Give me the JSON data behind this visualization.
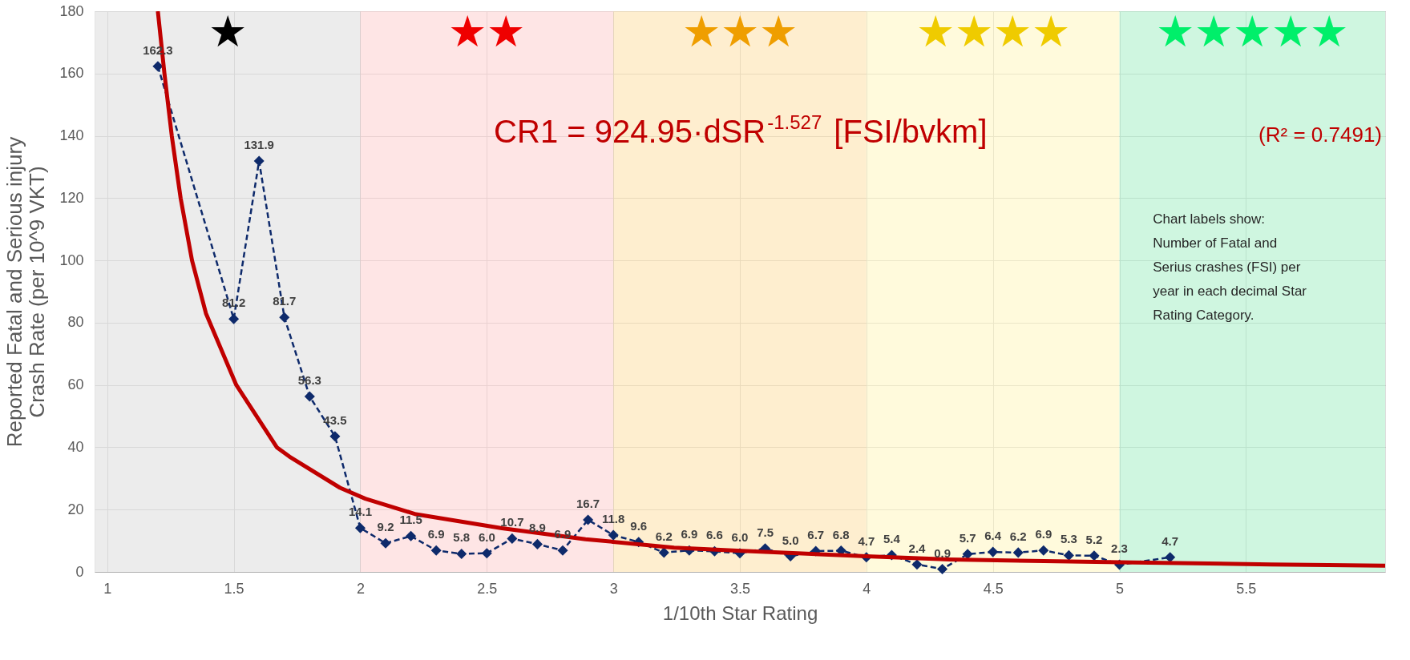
{
  "chart_data": {
    "type": "line",
    "xlabel": "1/10th Star Rating",
    "ylabel": "Reported Fatal and Serious injury Crash Rate (per 10^9 VKT)",
    "xlim": [
      0.95,
      6.05
    ],
    "xticks": [
      1,
      1.5,
      2,
      2.5,
      3,
      3.5,
      4,
      4.5,
      5,
      5.5
    ],
    "ylim": [
      0,
      180
    ],
    "yticks": [
      0,
      20,
      40,
      60,
      80,
      100,
      120,
      140,
      160,
      180
    ],
    "grid": true,
    "series": [
      {
        "color": "#0e2a6b",
        "marker": "diamond",
        "line_style": "dashed",
        "data_labels": true,
        "value_labels": [
          "162.3",
          "81.2",
          "131.9",
          "81.7",
          "56.3",
          "43.5",
          "14.1",
          "9.2",
          "11.5",
          "6.9",
          "5.8",
          "6.0",
          "10.7",
          "8.9",
          "6.9",
          "16.7",
          "11.8",
          "9.6",
          "6.2",
          "6.9",
          "6.6",
          "6.0",
          "7.5",
          "5.0",
          "6.7",
          "6.8",
          "4.7",
          "5.4",
          "2.4",
          "0.9",
          "5.7",
          "6.4",
          "6.2",
          "6.9",
          "5.3",
          "5.2",
          "2.3",
          "4.7"
        ],
        "x": [
          1.2,
          1.5,
          1.6,
          1.7,
          1.8,
          1.9,
          2.0,
          2.1,
          2.2,
          2.3,
          2.4,
          2.5,
          2.6,
          2.7,
          2.8,
          2.9,
          3.0,
          3.1,
          3.2,
          3.3,
          3.4,
          3.5,
          3.6,
          3.7,
          3.8,
          3.9,
          4.0,
          4.1,
          4.2,
          4.3,
          4.4,
          4.5,
          4.6,
          4.7,
          4.8,
          4.9,
          5.0,
          5.2
        ],
        "values": [
          162.3,
          81.2,
          131.9,
          81.7,
          56.3,
          43.5,
          14.1,
          9.2,
          11.5,
          6.9,
          5.8,
          6.0,
          10.7,
          8.9,
          6.9,
          16.7,
          11.8,
          9.6,
          6.2,
          6.9,
          6.6,
          6.0,
          7.5,
          5.0,
          6.7,
          6.8,
          4.7,
          5.4,
          2.4,
          0.9,
          5.7,
          6.4,
          6.2,
          6.9,
          5.3,
          5.2,
          2.3,
          4.7
        ]
      },
      {
        "color": "#c00000",
        "marker": "none",
        "line_style": "solid",
        "data_labels": false,
        "x": [
          1.2,
          1.226,
          1.255,
          1.29,
          1.335,
          1.39,
          1.51,
          1.67,
          1.72,
          1.92,
          2.02,
          2.22,
          2.56,
          2.89,
          3.24,
          3.49,
          4.0,
          4.33,
          5.06,
          5.6,
          6.05
        ],
        "values": [
          180,
          160,
          140,
          120,
          100,
          83,
          60,
          40,
          37,
          27,
          23.5,
          18.5,
          14,
          10.5,
          7.8,
          6.8,
          5,
          4,
          3,
          2.4,
          2
        ]
      }
    ],
    "bands": [
      {
        "axis": "x",
        "from": 0.95,
        "to": 2,
        "label": "★",
        "color": "#e6e6e6"
      },
      {
        "axis": "x",
        "from": 2,
        "to": 3,
        "label": "★★",
        "color": "#fddcdc"
      },
      {
        "axis": "x",
        "from": 3,
        "to": 4,
        "label": "★★★",
        "color": "#fde8bf"
      },
      {
        "axis": "x",
        "from": 4,
        "to": 5,
        "label": "★★★★",
        "color": "#fff8d0"
      },
      {
        "axis": "x",
        "from": 5,
        "to": 6.05,
        "label": "★★★★★",
        "color": "#bff3d6"
      }
    ],
    "annotations": [
      "CR1 = 924.95·dSR$^{-1.527}$ [FSI/bvkm]",
      "(R² = 0.7491)",
      "Chart labels show:",
      "Number of Fatal and Serius crashes (FSI) per year in each decimal Star Rating Category."
    ]
  }
}
